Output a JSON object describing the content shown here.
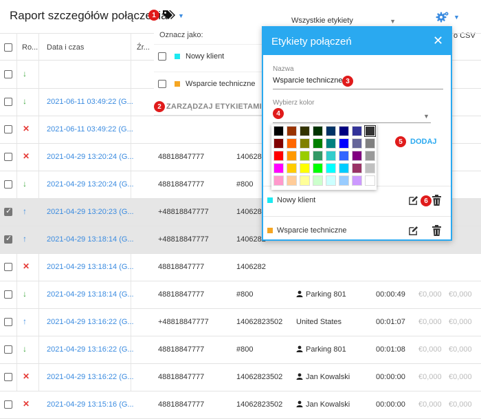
{
  "header": {
    "title": "Raport szczegółów połączenia",
    "filter_value": "Wszystkie etykiety",
    "export_label": "o CSV"
  },
  "columns": [
    "Ro...",
    "Data i czas",
    "Źr..."
  ],
  "rows": [
    {
      "direction": "in",
      "datetime": "",
      "number": "",
      "dest": "",
      "target": "",
      "duration": "",
      "cost1": "",
      "cost2": "",
      "selected": false
    },
    {
      "direction": "in",
      "datetime": "2021-06-11 03:49:22 (G...",
      "number": "",
      "dest": "",
      "target": "",
      "duration": "",
      "cost1": "",
      "cost2": "",
      "selected": false
    },
    {
      "direction": "missed",
      "datetime": "2021-06-11 03:49:22 (G...",
      "number": "",
      "dest": "",
      "target": "",
      "duration": "",
      "cost1": "",
      "cost2": "",
      "selected": false
    },
    {
      "direction": "missed",
      "datetime": "2021-04-29 13:20:24 (G...",
      "number": "48818847777",
      "dest": "1406282",
      "target": "",
      "duration": "",
      "cost1": "",
      "cost2": "",
      "selected": false
    },
    {
      "direction": "in",
      "datetime": "2021-04-29 13:20:24 (G...",
      "number": "48818847777",
      "dest": "#800",
      "target": "",
      "duration": "",
      "cost1": "",
      "cost2": "",
      "selected": false
    },
    {
      "direction": "out",
      "datetime": "2021-04-29 13:20:23 (G...",
      "number": "+48818847777",
      "dest": "1406282",
      "target": "",
      "duration": "",
      "cost1": "",
      "cost2": "",
      "selected": true
    },
    {
      "direction": "out",
      "datetime": "2021-04-29 13:18:14 (G...",
      "number": "+48818847777",
      "dest": "1406282",
      "target": "",
      "duration": "",
      "cost1": "",
      "cost2": "",
      "selected": true
    },
    {
      "direction": "missed",
      "datetime": "2021-04-29 13:18:14 (G...",
      "number": "48818847777",
      "dest": "1406282",
      "target": "",
      "duration": "",
      "cost1": "",
      "cost2": "",
      "selected": false
    },
    {
      "direction": "in",
      "datetime": "2021-04-29 13:18:14 (G...",
      "number": "48818847777",
      "dest": "#800",
      "target": "Parking 801",
      "duration": "00:00:49",
      "cost1": "€0,000",
      "cost2": "€0,000",
      "selected": false
    },
    {
      "direction": "out",
      "datetime": "2021-04-29 13:16:22 (G...",
      "number": "+48818847777",
      "dest": "14062823502",
      "target": "United States",
      "duration": "00:01:07",
      "cost1": "€0,000",
      "cost2": "€0,000",
      "selected": false
    },
    {
      "direction": "in",
      "datetime": "2021-04-29 13:16:22 (G...",
      "number": "48818847777",
      "dest": "#800",
      "target": "Parking 801",
      "duration": "00:01:08",
      "cost1": "€0,000",
      "cost2": "€0,000",
      "selected": false
    },
    {
      "direction": "missed",
      "datetime": "2021-04-29 13:16:22 (G...",
      "number": "48818847777",
      "dest": "14062823502",
      "target": "Jan Kowalski",
      "duration": "00:00:00",
      "cost1": "€0,000",
      "cost2": "€0,000",
      "selected": false
    },
    {
      "direction": "missed",
      "datetime": "2021-04-29 13:15:16 (G...",
      "number": "48818847777",
      "dest": "14062823502",
      "target": "Jan Kowalski",
      "duration": "00:00:00",
      "cost1": "€0,000",
      "cost2": "€0,000",
      "selected": false
    }
  ],
  "tag_menu": {
    "label": "Oznacz jako:",
    "options": [
      {
        "name": "Nowy klient",
        "color": "#1de9f0"
      },
      {
        "name": "Wsparcie techniczne",
        "color": "#f5a623"
      }
    ],
    "manage_label": "ZARZĄDZAJ ETYKIETAMI"
  },
  "dialog": {
    "title": "Etykiety połączeń",
    "name_label": "Nazwa",
    "name_value": "Wsparcie techniczne",
    "color_label": "Wybierz kolor",
    "add_label": "DODAJ",
    "tags": [
      {
        "name": "Nowy klient",
        "color": "#1de9f0"
      },
      {
        "name": "Wsparcie techniczne",
        "color": "#f5a623"
      }
    ]
  },
  "palette": [
    "#000000",
    "#993300",
    "#333300",
    "#003300",
    "#003366",
    "#000080",
    "#333399",
    "#333333",
    "#800000",
    "#ff6600",
    "#808000",
    "#008000",
    "#008080",
    "#0000ff",
    "#666699",
    "#808080",
    "#ff0000",
    "#ff9900",
    "#99cc00",
    "#339966",
    "#33cccc",
    "#3366ff",
    "#800080",
    "#999999",
    "#ff00ff",
    "#ffcc00",
    "#ffff00",
    "#00ff00",
    "#00ffff",
    "#00ccff",
    "#993366",
    "#c0c0c0",
    "#ff99cc",
    "#ffcc99",
    "#ffff99",
    "#ccffcc",
    "#ccffff",
    "#99ccff",
    "#cc99ff",
    "#ffffff"
  ],
  "annotations": [
    "1",
    "2",
    "3",
    "4",
    "5",
    "6"
  ],
  "colors": {
    "accent": "#2aa9f0",
    "badge": "#e01b1b",
    "link": "#3a8be0"
  }
}
